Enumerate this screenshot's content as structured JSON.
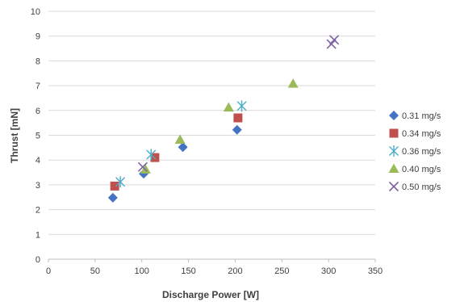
{
  "chart_data": {
    "type": "scatter",
    "title": "",
    "xlabel": "Discharge Power [W]",
    "ylabel": "Thrust [mN]",
    "xlim": [
      0,
      350
    ],
    "ylim": [
      0,
      10
    ],
    "xticks": [
      0,
      50,
      100,
      150,
      200,
      250,
      300,
      350
    ],
    "yticks": [
      0,
      1,
      2,
      3,
      4,
      5,
      6,
      7,
      8,
      9,
      10
    ],
    "grid": "horizontal",
    "legend_position": "right",
    "series": [
      {
        "name": "0.31 mg/s",
        "marker": "diamond",
        "color": "#4472C4",
        "points": [
          [
            69,
            2.48
          ],
          [
            102,
            3.45
          ],
          [
            144,
            4.52
          ],
          [
            202,
            5.22
          ]
        ]
      },
      {
        "name": "0.34 mg/s",
        "marker": "square",
        "color": "#C0504D",
        "points": [
          [
            71,
            2.95
          ],
          [
            114,
            4.1
          ],
          [
            203,
            5.7
          ]
        ]
      },
      {
        "name": "0.36 mg/s",
        "marker": "asterisk",
        "color": "#4BACC6",
        "points": [
          [
            77,
            3.12
          ],
          [
            110,
            4.22
          ],
          [
            207,
            6.18
          ]
        ]
      },
      {
        "name": "0.40 mg/s",
        "marker": "triangle",
        "color": "#9BBB59",
        "points": [
          [
            104,
            3.62
          ],
          [
            141,
            4.82
          ],
          [
            193,
            6.12
          ],
          [
            262,
            7.08
          ]
        ]
      },
      {
        "name": "0.50 mg/s",
        "marker": "cross",
        "color": "#8064A2",
        "points": [
          [
            101,
            3.72
          ],
          [
            303,
            8.68
          ],
          [
            306,
            8.85
          ]
        ]
      }
    ]
  }
}
